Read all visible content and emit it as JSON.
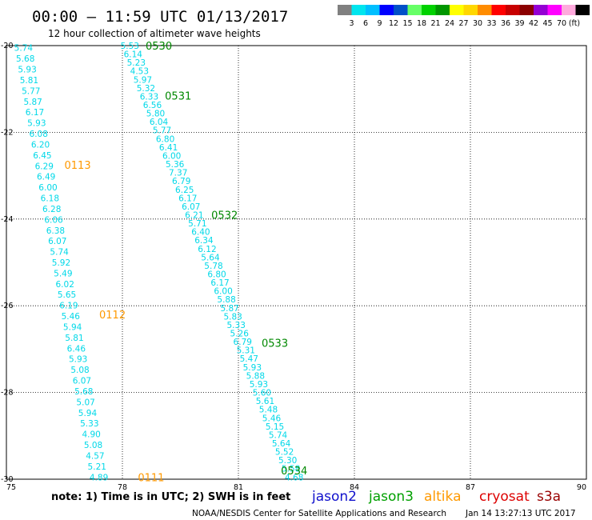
{
  "header": {
    "title": "00:00 – 11:59 UTC 01/13/2017",
    "subtitle": "12 hour collection of altimeter wave heights"
  },
  "colorbar": {
    "unit": "(ft)",
    "entries": [
      {
        "label": "",
        "color": "#808080"
      },
      {
        "label": "3",
        "color": "#00e5ee"
      },
      {
        "label": "6",
        "color": "#00bfff"
      },
      {
        "label": "9",
        "color": "#0000ff"
      },
      {
        "label": "12",
        "color": "#0050c8"
      },
      {
        "label": "15",
        "color": "#66ff66"
      },
      {
        "label": "18",
        "color": "#00d200"
      },
      {
        "label": "21",
        "color": "#009600"
      },
      {
        "label": "24",
        "color": "#ffff00"
      },
      {
        "label": "27",
        "color": "#ffd700"
      },
      {
        "label": "30",
        "color": "#ff8c00"
      },
      {
        "label": "33",
        "color": "#ff0000"
      },
      {
        "label": "36",
        "color": "#c80000"
      },
      {
        "label": "39",
        "color": "#8b0000"
      },
      {
        "label": "42",
        "color": "#9400d3"
      },
      {
        "label": "45",
        "color": "#ff00ff"
      },
      {
        "label": "70",
        "color": "#ffaadd"
      },
      {
        "label": "",
        "color": "#000000"
      }
    ]
  },
  "footer": {
    "note": "note: 1) Time is in UTC; 2) SWH is in feet",
    "satellites": [
      {
        "name": "jason2",
        "color": "#1010cc"
      },
      {
        "name": "jason3",
        "color": "#00a000"
      },
      {
        "name": "altika",
        "color": "#ff9900"
      },
      {
        "name": "cryosat",
        "color": "#dd0000"
      },
      {
        "name": "s3a",
        "color": "#990000"
      }
    ],
    "credit": "NOAA/NESDIS Center for Satellite Applications and Research",
    "timestamp": "Jan 14 13:27:13 UTC 2017"
  },
  "chart_data": {
    "type": "scatter",
    "xlim": [
      75,
      90
    ],
    "ylim": [
      -30,
      -20
    ],
    "x_ticks": [
      "75",
      "78",
      "81",
      "84",
      "87",
      "90"
    ],
    "y_ticks": [
      "-20",
      "-22",
      "-24",
      "-26",
      "-28",
      "-30"
    ],
    "grid": true,
    "value_color": "#00d8e8",
    "pass_labels": [
      {
        "label": "0530",
        "lon": 78.6,
        "lat": -20.0,
        "color": "#008800"
      },
      {
        "label": "0531",
        "lon": 79.1,
        "lat": -21.15,
        "color": "#008800"
      },
      {
        "label": "0532",
        "lon": 80.3,
        "lat": -23.9,
        "color": "#008800"
      },
      {
        "label": "0533",
        "lon": 81.6,
        "lat": -26.85,
        "color": "#008800"
      },
      {
        "label": "0534",
        "lon": 82.1,
        "lat": -29.8,
        "color": "#008800"
      },
      {
        "label": "0113",
        "lon": 76.5,
        "lat": -22.75,
        "color": "#ff9900"
      },
      {
        "label": "0112",
        "lon": 77.4,
        "lat": -26.2,
        "color": "#ff9900"
      },
      {
        "label": "0111",
        "lon": 78.4,
        "lat": -29.95,
        "color": "#ff9900"
      }
    ],
    "series": [
      {
        "name": "",
        "lon_start": 75.2,
        "lat_start": -20.05,
        "lon_end": 77.15,
        "lat_end": -29.95,
        "values": [
          "5.74",
          "5.68",
          "5.93",
          "5.81",
          "5.77",
          "5.87",
          "6.17",
          "5.93",
          "6.08",
          "6.20",
          "6.45",
          "6.29",
          "6.49",
          "6.00",
          "6.18",
          "6.28",
          "6.06",
          "6.38",
          "6.07",
          "5.74",
          "5.92",
          "5.49",
          "6.02",
          "5.65",
          "6.19",
          "5.46",
          "5.94",
          "5.81",
          "6.46",
          "5.93",
          "5.08",
          "6.07",
          "5.68",
          "5.07",
          "5.94",
          "5.33",
          "4.90",
          "5.08",
          "4.57",
          "5.21",
          "4.89"
        ]
      },
      {
        "name": "",
        "lon_start": 77.95,
        "lat_start": -20.0,
        "lon_end": 82.2,
        "lat_end": -29.95,
        "values": [
          "5.53",
          "6.14",
          "5.23",
          "4.53",
          "5.97",
          "5.32",
          "6.33",
          "6.56",
          "5.80",
          "6.04",
          "5.77",
          "6.80",
          "6.41",
          "6.00",
          "5.36",
          "7.37",
          "6.79",
          "6.25",
          "6.17",
          "6.07",
          "6.21",
          "5.71",
          "6.40",
          "6.34",
          "6.12",
          "5.64",
          "5.78",
          "6.80",
          "6.17",
          "6.00",
          "5.88",
          "5.87",
          "5.83",
          "5.33",
          "5.26",
          "6.79",
          "5.31",
          "5.47",
          "5.93",
          "5.88",
          "5.93",
          "5.60",
          "5.61",
          "5.48",
          "5.46",
          "5.15",
          "5.74",
          "5.64",
          "5.52",
          "5.30",
          "5.58",
          "4.68"
        ]
      }
    ]
  }
}
